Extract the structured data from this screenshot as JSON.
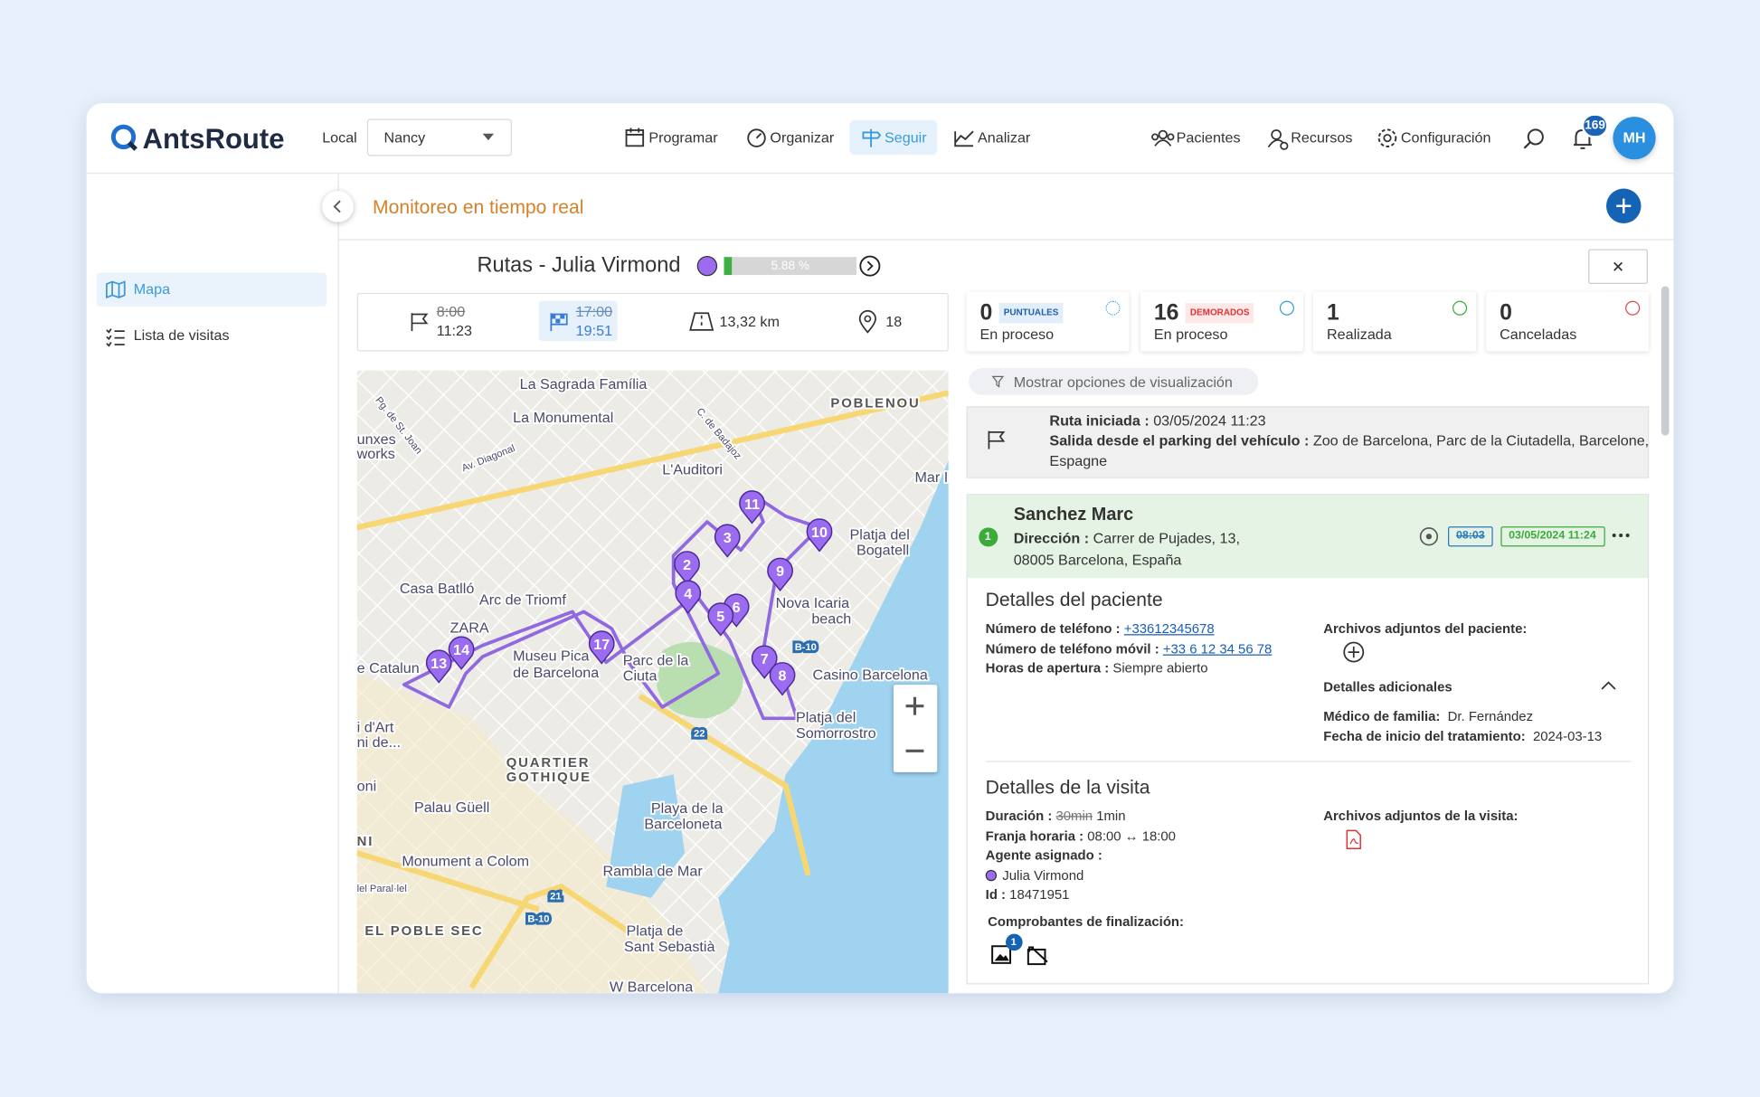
{
  "header": {
    "brand": "AntsRoute",
    "local_label": "Local",
    "local_value": "Nancy",
    "nav": [
      "Programar",
      "Organizar",
      "Seguir",
      "Analizar"
    ],
    "right_nav": [
      "Pacientes",
      "Recursos",
      "Configuración"
    ],
    "notifications": "169",
    "avatar": "MH"
  },
  "sidebar": {
    "items": [
      "Mapa",
      "Lista de visitas"
    ]
  },
  "page": {
    "title": "Monitoreo en tiempo real"
  },
  "route": {
    "title": "Rutas - Julia Virmond",
    "progress": "5.88 %",
    "planned_start": "8:00",
    "actual_start": "11:23",
    "planned_end": "17:00",
    "actual_end": "19:51",
    "distance": "13,32 km",
    "stops": "18"
  },
  "stats": [
    {
      "count": "0",
      "badge": "PUNTUALES",
      "label": "En proceso"
    },
    {
      "count": "16",
      "badge": "DEMORADOS",
      "label": "En proceso"
    },
    {
      "count": "1",
      "label": "Realizada"
    },
    {
      "count": "0",
      "label": "Canceladas"
    }
  ],
  "filter": "Mostrar opciones de visualización",
  "route_start": {
    "started_label": "Ruta iniciada :",
    "started_value": "03/05/2024 11:23",
    "departure_label": "Salida desde el parking del vehículo :",
    "departure_value": "Zoo de Barcelona, Parc de la Ciutadella, Barcelone,",
    "departure_value_2": "Espagne"
  },
  "visit": {
    "index": "1",
    "name": "Sanchez Marc",
    "address_label": "Dirección :",
    "address": "Carrer de Pujades, 13,",
    "address_2": "08005 Barcelona, España",
    "planned_time": "08:03",
    "actual_time": "03/05/2024 11:24",
    "patient": {
      "title": "Detalles del paciente",
      "phone_label": "Número de teléfono :",
      "phone": "+33612345678",
      "mobile_label": "Número de teléfono móvil :",
      "mobile": "+33 6 12 34 56 78",
      "hours_label": "Horas de apertura :",
      "hours": "Siempre abierto",
      "attachments": "Archivos adjuntos del paciente:",
      "extra_title": "Detalles adicionales",
      "doctor_label": "Médico de familia:",
      "doctor": "Dr. Fernández",
      "treatment_label": "Fecha de inicio del tratamiento:",
      "treatment": "2024-03-13"
    },
    "details": {
      "title": "Detalles de la visita",
      "duration_label": "Duración :",
      "duration_planned": "30min",
      "duration_actual": "1min",
      "window_label": "Franja horaria :",
      "window": "08:00 ↔ 18:00",
      "agent_label": "Agente asignado :",
      "agent": "Julia Virmond",
      "id_label": "Id :",
      "id": "18471951",
      "attachments": "Archivos adjuntos de la visita:",
      "proofs": "Comprobantes de finalización:",
      "proof_count": "1"
    }
  },
  "map": {
    "labels": [
      "La Sagrada Família",
      "POBLENOU",
      "La Monumental",
      "unxes",
      "works",
      "Av. Diagonal",
      "L'Auditori",
      "Mar I",
      "Platja del",
      "Bogatell",
      "Casa Batlló",
      "Arc de Triomf",
      "Nova Icaria",
      "beach",
      "ZARA",
      "e Catalun",
      "Museu Pica",
      "de Barcelona",
      "Parc de la",
      "Ciuta",
      "Casino Barcelona",
      "Platja del",
      "Somorrostro",
      "QUARTIER",
      "GOTHIQUE",
      "Palau Güell",
      "Playa de la",
      "Barceloneta",
      "Monument a Colom",
      "Rambla de Mar",
      "EL POBLE SEC",
      "Platja de",
      "Sant Sebastià",
      "W Barcelona",
      "Pg. de St. Joan",
      "C. de Badajoz",
      "B-10",
      "22",
      "21",
      "B-10",
      "i d'Art",
      "ni de...",
      "NI",
      "oni",
      "lel Paral·lel"
    ],
    "markers": [
      "11",
      "3",
      "10",
      "2",
      "9",
      "4",
      "6",
      "5",
      "17",
      "14",
      "13",
      "7",
      "8"
    ]
  }
}
